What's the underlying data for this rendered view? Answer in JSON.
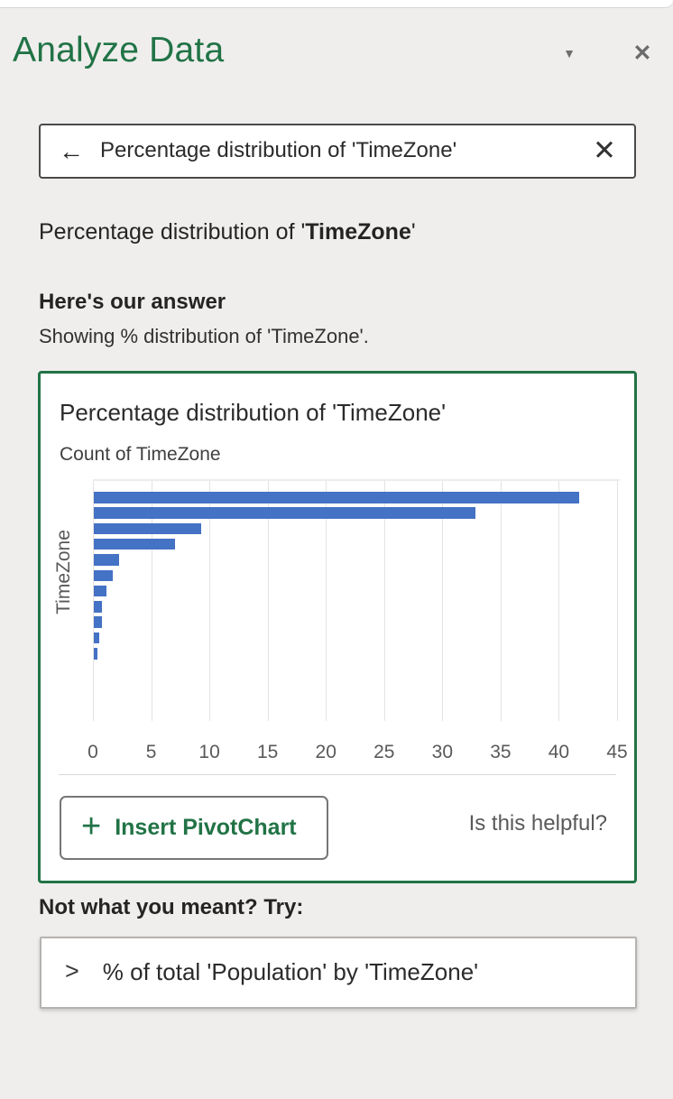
{
  "pane": {
    "title": "Analyze Data"
  },
  "icons": {
    "dropdown_caret": "▼",
    "close": "✕",
    "back_arrow": "←",
    "clear": "✕",
    "plus": "+",
    "chevron_right": ">"
  },
  "search": {
    "query": "Percentage distribution of 'TimeZone'"
  },
  "question": {
    "prefix": "Percentage distribution of '",
    "bold": "TimeZone",
    "suffix": "'"
  },
  "answer": {
    "heading": "Here's our answer",
    "subtext": "Showing % distribution of 'TimeZone'."
  },
  "card": {
    "title": "Percentage distribution of 'TimeZone'",
    "series_label": "Count of TimeZone",
    "insert_button_label": "Insert PivotChart",
    "helpful_label": "Is this helpful?"
  },
  "suggestions": {
    "heading": "Not what you meant? Try:",
    "items": [
      "% of total 'Population' by 'TimeZone'"
    ]
  },
  "chart_data": {
    "type": "bar",
    "orientation": "horizontal",
    "title": "Percentage distribution of 'TimeZone'",
    "series_label": "Count of TimeZone",
    "ylabel": "TimeZone",
    "xlabel": "",
    "values": [
      41.7,
      32.8,
      9.2,
      7.0,
      2.2,
      1.6,
      1.1,
      0.7,
      0.7,
      0.5,
      0.3
    ],
    "xlim": [
      0,
      45
    ],
    "xticks": [
      0,
      5,
      10,
      15,
      20,
      25,
      30,
      35,
      40,
      45
    ],
    "bar_color": "#4472C4",
    "grid": true,
    "legend_position": "none"
  }
}
